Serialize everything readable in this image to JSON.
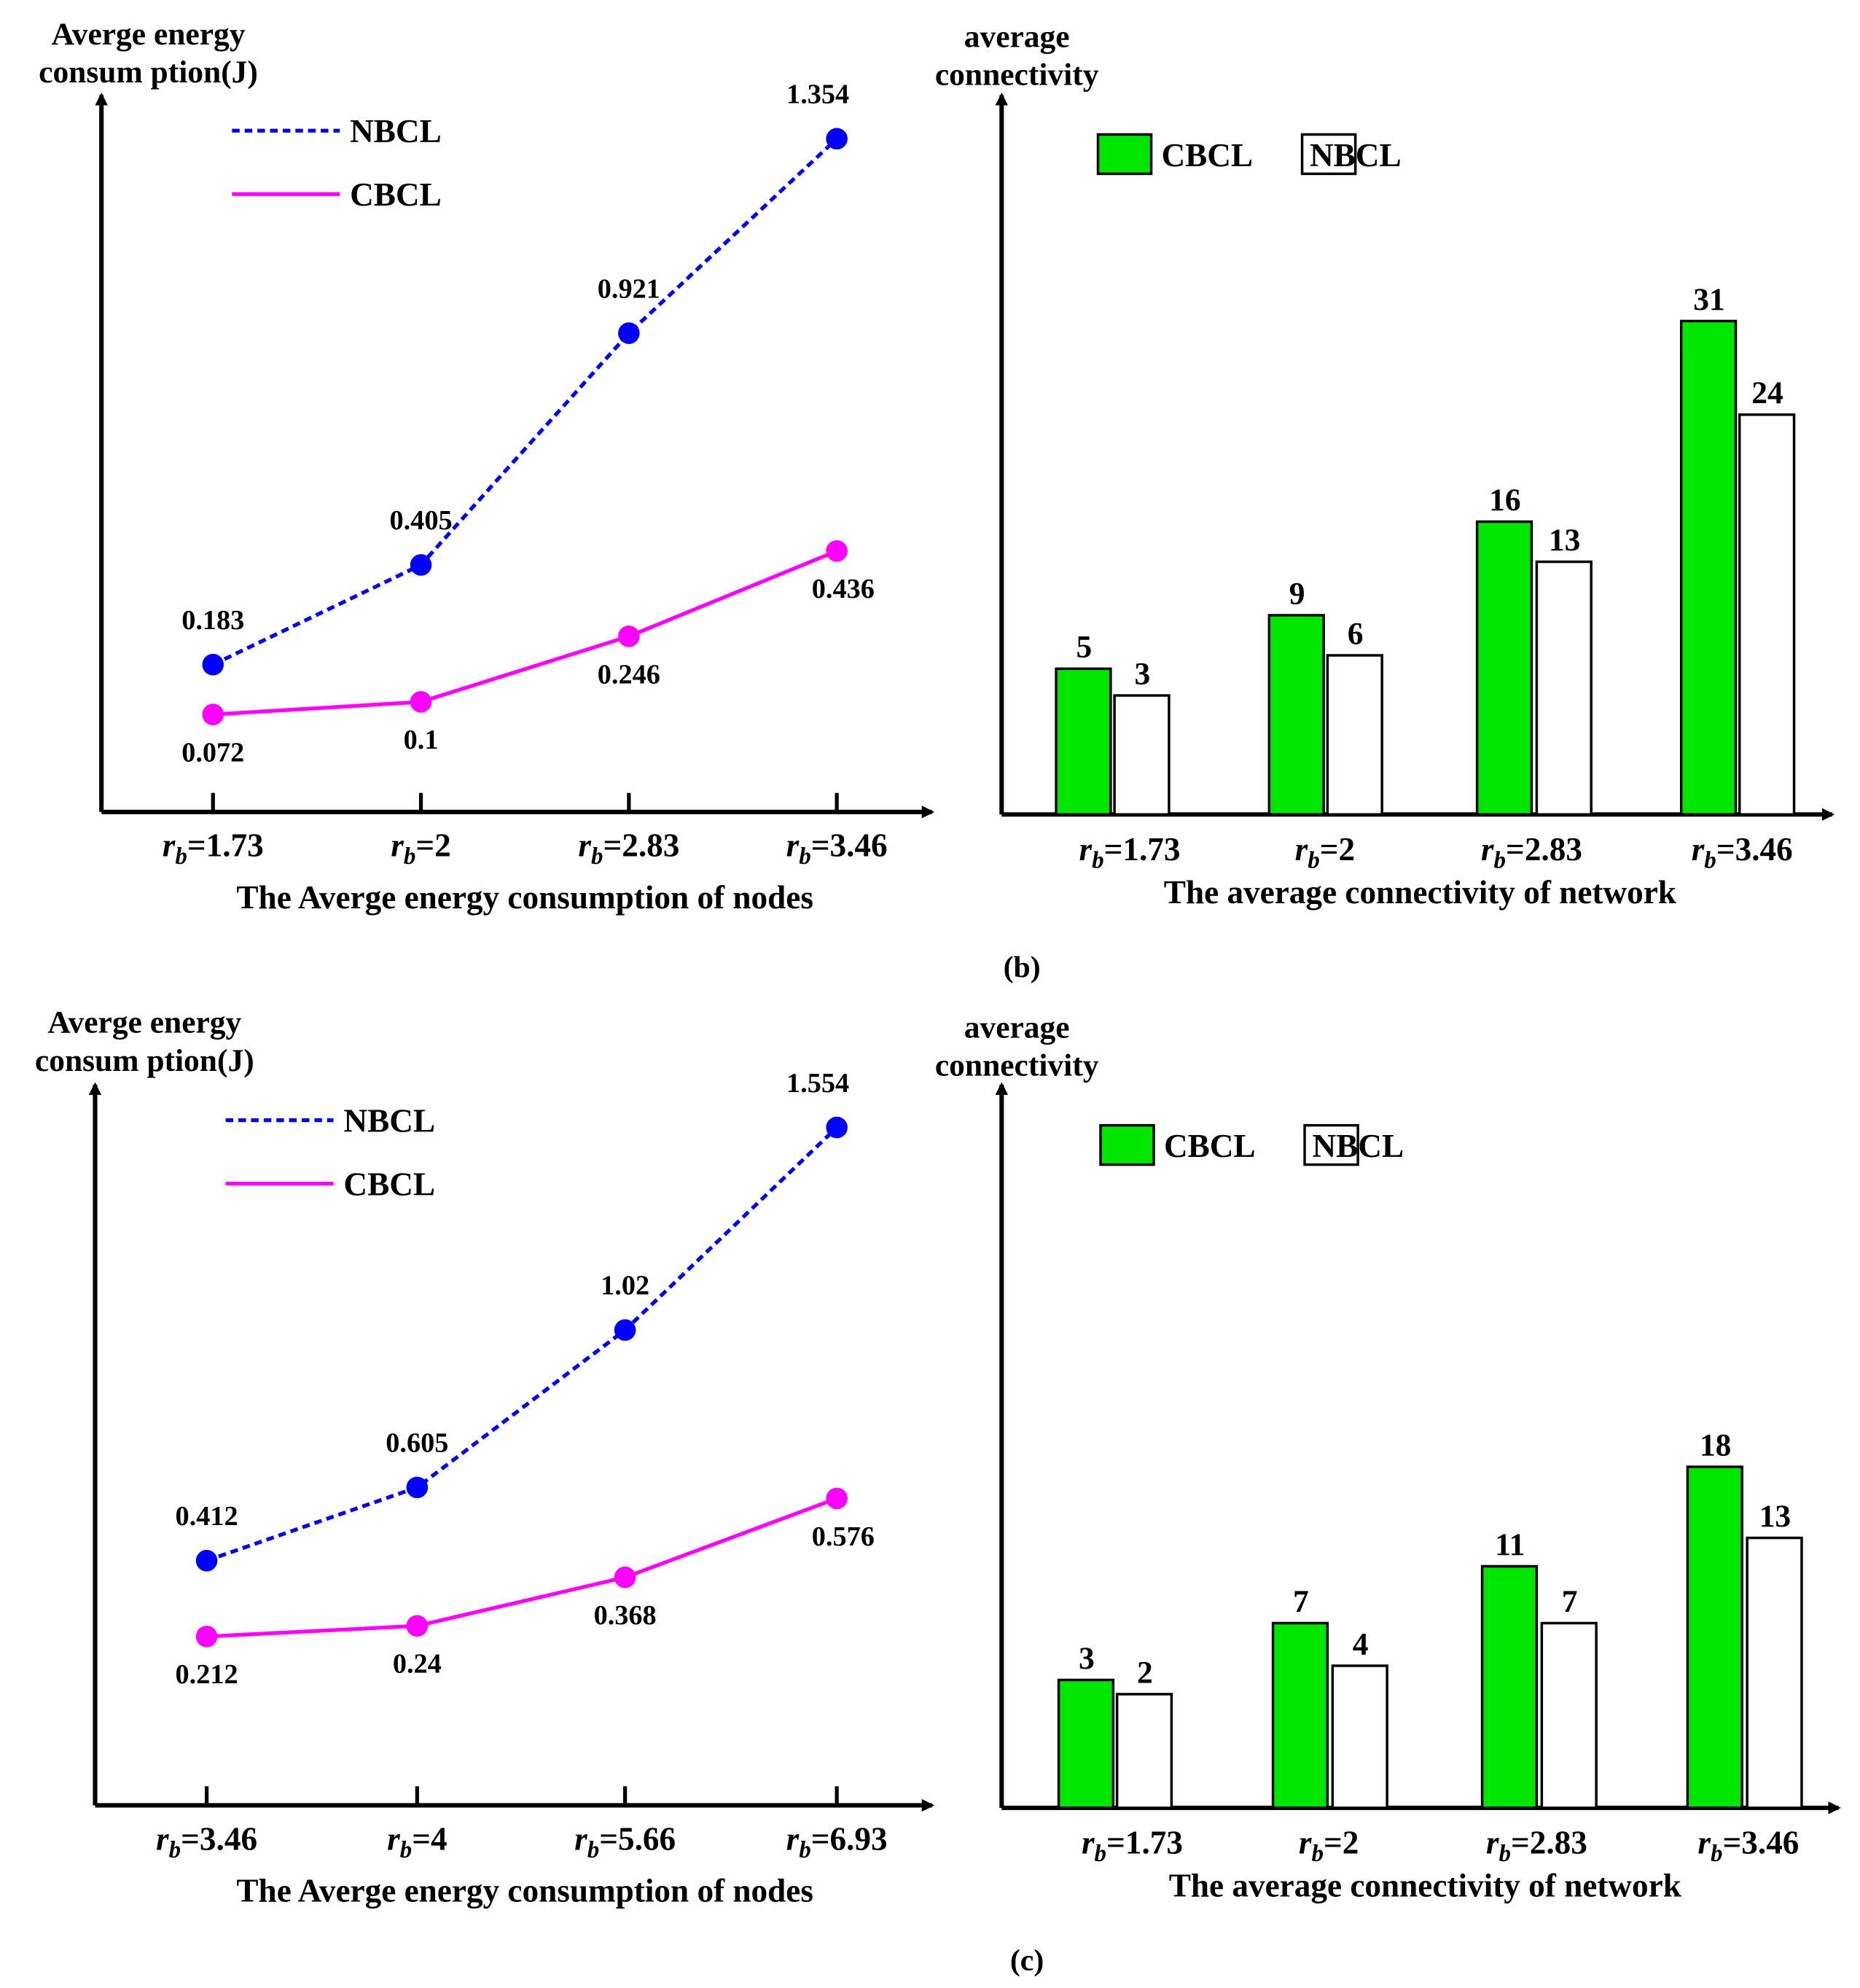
{
  "captions": [
    "(b)",
    "(c)"
  ],
  "colors": {
    "nbcl_line": "#0000ff",
    "cbcl_line": "#ff00ff",
    "cbcl_bar": "#00e600",
    "nbcl_bar": "#ffffff"
  },
  "chart_data": [
    {
      "type": "line",
      "ylabel_lines": [
        "Averge energy",
        "consum ption(J)"
      ],
      "xlabel": "The Averge energy consumption of nodes",
      "tick_var": "r",
      "tick_sub": "b",
      "categories": [
        "1.73",
        "2",
        "2.83",
        "3.46"
      ],
      "series": [
        {
          "name": "NBCL",
          "style": "dashed",
          "values": [
            0.183,
            0.405,
            0.921,
            1.354
          ],
          "labels": [
            "0.183",
            "0.405",
            "0.921",
            "1.354"
          ]
        },
        {
          "name": "CBCL",
          "style": "solid",
          "values": [
            0.072,
            0.1,
            0.246,
            0.436
          ],
          "labels": [
            "0.072",
            "0.1",
            "0.246",
            "0.436"
          ]
        }
      ],
      "legend": "top-left",
      "grid": false
    },
    {
      "type": "bar",
      "ylabel_lines": [
        "average",
        "connectivity"
      ],
      "xlabel": "The average connectivity of network",
      "tick_var": "r",
      "tick_sub": "b",
      "categories": [
        "1.73",
        "2",
        "2.83",
        "3.46"
      ],
      "series": [
        {
          "name": "CBCL",
          "values": [
            5,
            9,
            16,
            31
          ],
          "labels": [
            "5",
            "9",
            "16",
            "31"
          ]
        },
        {
          "name": "NBCL",
          "values": [
            3,
            6,
            13,
            24
          ],
          "labels": [
            "3",
            "6",
            "13",
            "24"
          ]
        }
      ],
      "legend": "top",
      "grid": false
    },
    {
      "type": "line",
      "ylabel_lines": [
        "Averge energy",
        "consum ption(J)"
      ],
      "xlabel": "The Averge energy consumption of nodes",
      "tick_var": "r",
      "tick_sub": "b",
      "categories": [
        "3.46",
        "4",
        "5.66",
        "6.93"
      ],
      "series": [
        {
          "name": "NBCL",
          "style": "dashed",
          "values": [
            0.412,
            0.605,
            1.02,
            1.554
          ],
          "labels": [
            "0.412",
            "0.605",
            "1.02",
            "1.554"
          ]
        },
        {
          "name": "CBCL",
          "style": "solid",
          "values": [
            0.212,
            0.24,
            0.368,
            0.576
          ],
          "labels": [
            "0.212",
            "0.24",
            "0.368",
            "0.576"
          ]
        }
      ],
      "legend": "top-left",
      "grid": false
    },
    {
      "type": "bar",
      "ylabel_lines": [
        "average",
        "connectivity"
      ],
      "xlabel": "The average connectivity of network",
      "tick_var": "r",
      "tick_sub": "b",
      "categories": [
        "1.73",
        "2",
        "2.83",
        "3.46"
      ],
      "series": [
        {
          "name": "CBCL",
          "values": [
            3,
            7,
            11,
            18
          ],
          "labels": [
            "3",
            "7",
            "11",
            "18"
          ]
        },
        {
          "name": "NBCL",
          "values": [
            2,
            4,
            7,
            13
          ],
          "labels": [
            "2",
            "4",
            "7",
            "13"
          ]
        }
      ],
      "legend": "top",
      "grid": false
    }
  ]
}
